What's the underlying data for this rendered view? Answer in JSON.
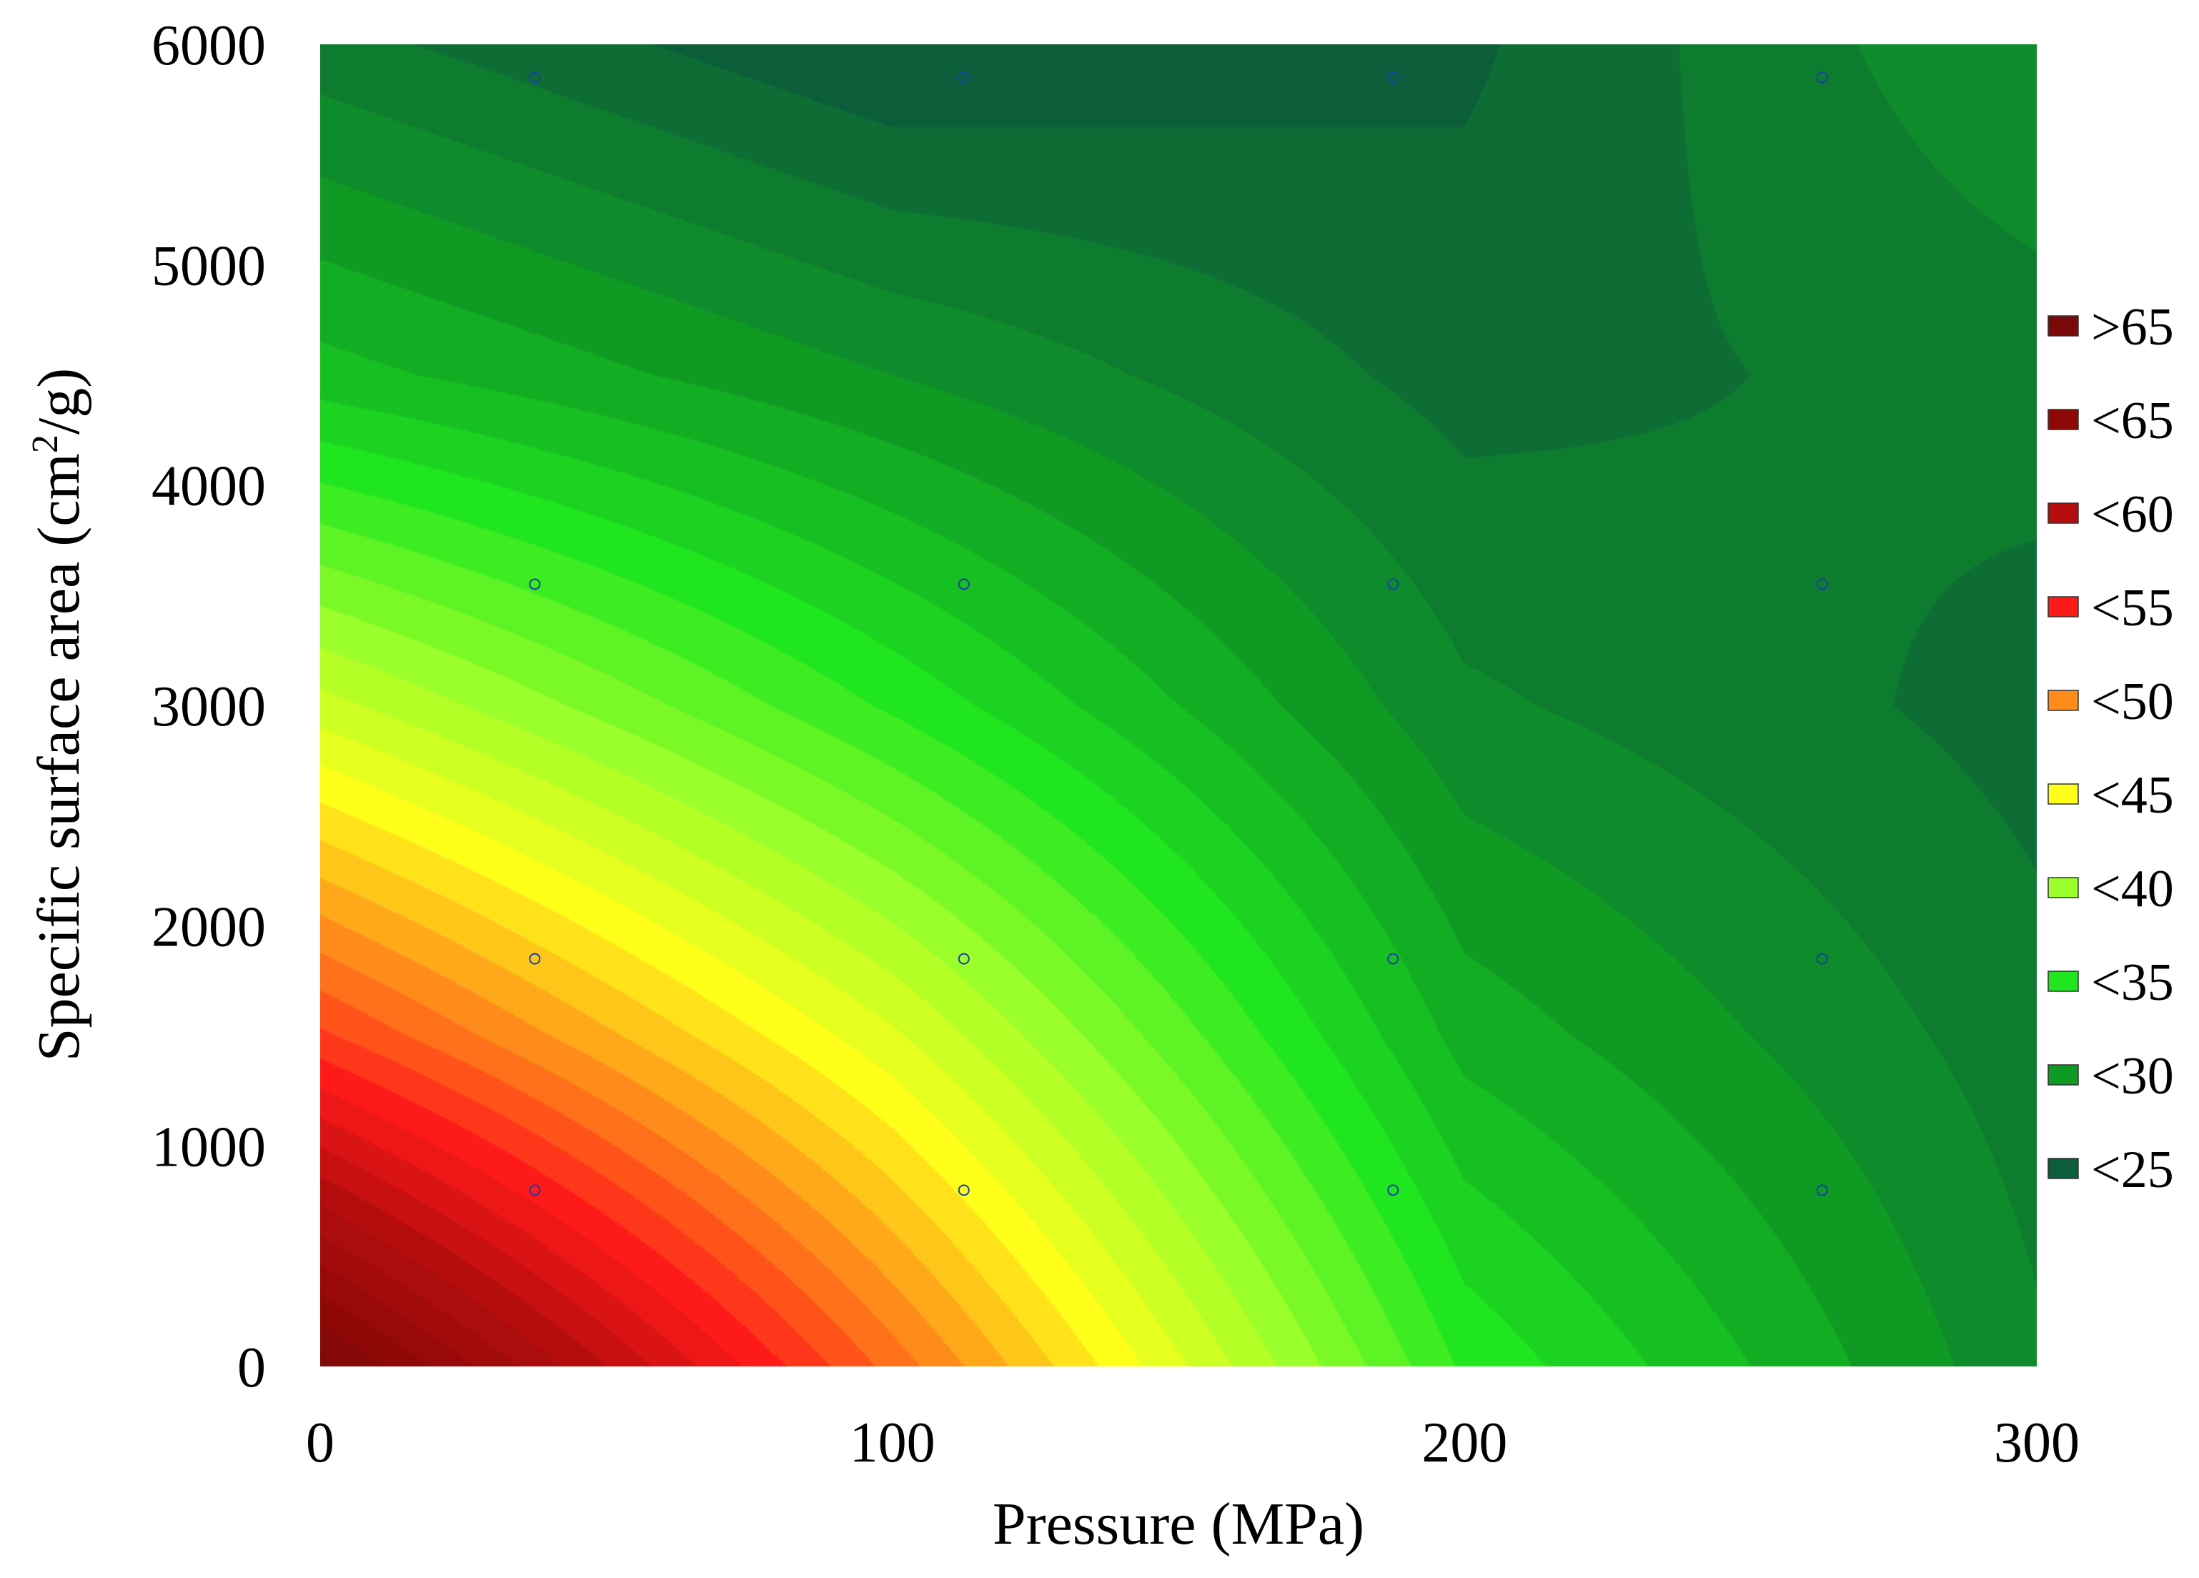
{
  "chart_data": {
    "type": "heatmap",
    "subtype": "contour",
    "title": "",
    "xlabel": "Pressure (MPa)",
    "ylabel": "Specific surface area (cm²/g)",
    "ylabel_parts": {
      "before": "Specific surface area (cm",
      "sup": "2",
      "after": "/g)"
    },
    "xlim": [
      0,
      300
    ],
    "ylim": [
      0,
      6000
    ],
    "x_ticks": [
      0,
      100,
      200,
      300
    ],
    "y_ticks": [
      0,
      1000,
      2000,
      3000,
      4000,
      5000,
      6000
    ],
    "grid": false,
    "legend_position": "right",
    "legend": [
      {
        "label": ">65",
        "color": "#7a0a0a"
      },
      {
        "label": "<65",
        "color": "#8e0808"
      },
      {
        "label": "<60",
        "color": "#b50d0d"
      },
      {
        "label": "<55",
        "color": "#ff1a1a"
      },
      {
        "label": "<50",
        "color": "#ff8c1a"
      },
      {
        "label": "<45",
        "color": "#ffff1a"
      },
      {
        "label": "<40",
        "color": "#9aff2a"
      },
      {
        "label": "<35",
        "color": "#1fe61f"
      },
      {
        "label": "<30",
        "color": "#0f9a24"
      },
      {
        "label": "<25",
        "color": "#0c5e3a"
      }
    ],
    "design_points": [
      {
        "x": 37.5,
        "y": 800
      },
      {
        "x": 112.5,
        "y": 800
      },
      {
        "x": 187.5,
        "y": 800
      },
      {
        "x": 262.5,
        "y": 800
      },
      {
        "x": 37.5,
        "y": 1850
      },
      {
        "x": 112.5,
        "y": 1850
      },
      {
        "x": 187.5,
        "y": 1850
      },
      {
        "x": 262.5,
        "y": 1850
      },
      {
        "x": 37.5,
        "y": 3550
      },
      {
        "x": 112.5,
        "y": 3550
      },
      {
        "x": 187.5,
        "y": 3550
      },
      {
        "x": 262.5,
        "y": 3550
      },
      {
        "x": 37.5,
        "y": 5850
      },
      {
        "x": 112.5,
        "y": 5850
      },
      {
        "x": 187.5,
        "y": 5850
      },
      {
        "x": 262.5,
        "y": 5850
      }
    ],
    "surface_samples": [
      {
        "x": 0,
        "y": 0,
        "z": 68
      },
      {
        "x": 0,
        "y": 1500,
        "z": 54
      },
      {
        "x": 0,
        "y": 3000,
        "z": 43
      },
      {
        "x": 0,
        "y": 4500,
        "z": 33
      },
      {
        "x": 0,
        "y": 6000,
        "z": 28
      },
      {
        "x": 100,
        "y": 0,
        "z": 52
      },
      {
        "x": 100,
        "y": 1500,
        "z": 44
      },
      {
        "x": 100,
        "y": 3000,
        "z": 36
      },
      {
        "x": 100,
        "y": 4500,
        "z": 30
      },
      {
        "x": 100,
        "y": 6000,
        "z": 25
      },
      {
        "x": 200,
        "y": 0,
        "z": 36
      },
      {
        "x": 200,
        "y": 1500,
        "z": 32
      },
      {
        "x": 200,
        "y": 3000,
        "z": 29
      },
      {
        "x": 200,
        "y": 4500,
        "z": 27
      },
      {
        "x": 200,
        "y": 6000,
        "z": 26
      },
      {
        "x": 300,
        "y": 0,
        "z": 29
      },
      {
        "x": 300,
        "y": 1500,
        "z": 28
      },
      {
        "x": 300,
        "y": 3000,
        "z": 27
      },
      {
        "x": 300,
        "y": 4500,
        "z": 28
      },
      {
        "x": 300,
        "y": 6000,
        "z": 30
      }
    ]
  }
}
